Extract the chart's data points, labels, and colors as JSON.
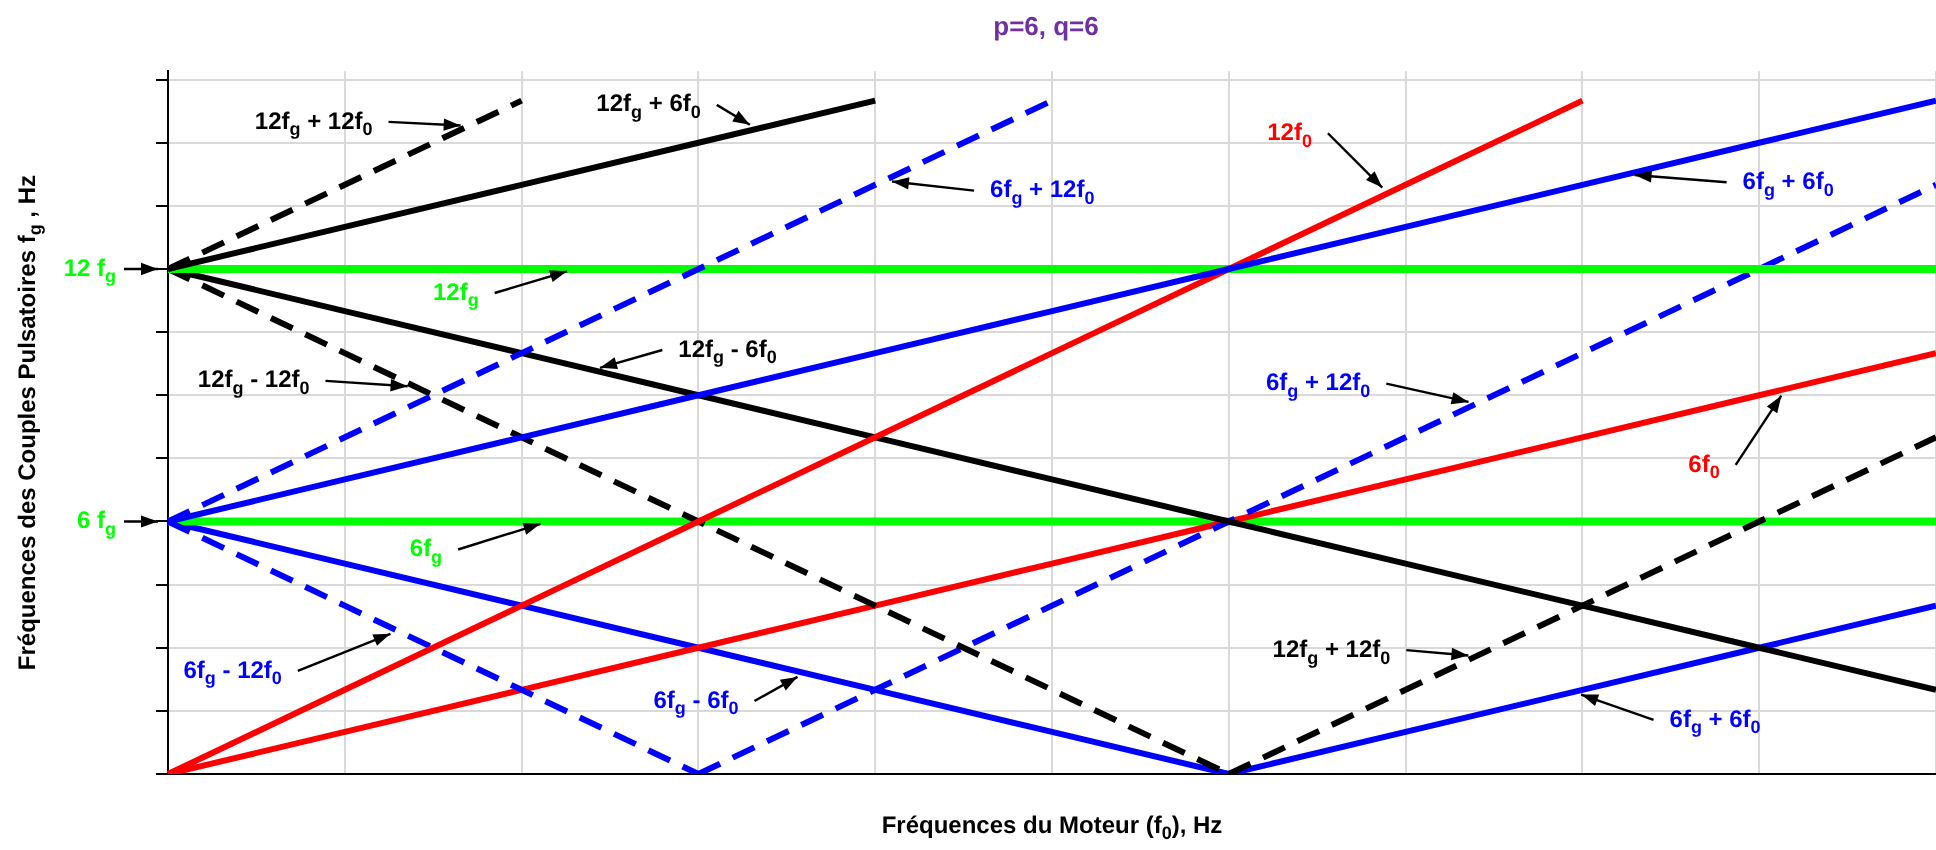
{
  "chart_data": {
    "type": "line",
    "title": "p=6, q=6",
    "xlabel": "Fréquences du Moteur (f$_{0}$), Hz",
    "ylabel": "Fréquences des Couples Pulsatoires f$_{g}$ , Hz",
    "categories": [
      null,
      null,
      null,
      null,
      null,
      null,
      null,
      null,
      null,
      null,
      null
    ],
    "ylim": [
      0,
      16.7
    ],
    "yticks": [
      {
        "value": 0,
        "label": null
      },
      {
        "value": 1.5,
        "label": null
      },
      {
        "value": 3,
        "label": null
      },
      {
        "value": 4.5,
        "label": null
      },
      {
        "value": 6,
        "label": "6 f$_{g}$"
      },
      {
        "value": 7.5,
        "label": null
      },
      {
        "value": 9,
        "label": null
      },
      {
        "value": 10.5,
        "label": null
      },
      {
        "value": 12,
        "label": "12 f$_{g}$"
      },
      {
        "value": 13.5,
        "label": null
      },
      {
        "value": 15,
        "label": null
      },
      {
        "value": 16.5,
        "label": null
      }
    ],
    "tick_labels": "y",
    "grid": true,
    "legend": false,
    "marker": "none",
    "annotations": [
      "12f$_{g}$ + 12f$_{0}$",
      "12f$_{g}$ + 6f$_{0}$",
      "6f$_{g}$ + 12f$_{0}$",
      "6f$_{g}$ + 6f$_{0}$",
      "12f$_{0}$",
      "12f$_{g}$",
      "12f$_{g}$ - 6f$_{0}$",
      "12f$_{g}$ - 12f$_{0}$",
      "12f$_{g}$ + 12f$_{0}$",
      "6f$_{g}$ - 12f$_{0}$",
      "6f$_{g}$ + 12f$_{0}$",
      "6f$_{0}$",
      "6f$_{g}$",
      "6f$_{g}$ - 6f$_{0}$",
      "6f$_{g}$ + 6f$_{0}$"
    ],
    "series": [
      {
        "color": "#000000",
        "line_style": "dashed",
        "values": [
          12,
          14,
          16,
          null,
          null,
          null,
          null,
          null,
          null,
          null,
          null
        ]
      },
      {
        "color": "#000000",
        "line_style": "solid",
        "values": [
          12,
          13,
          14,
          15,
          16,
          null,
          null,
          null,
          null,
          null,
          null
        ]
      },
      {
        "color": "#0000ff",
        "line_style": "dashed",
        "values": [
          6,
          8,
          10,
          12,
          14,
          16,
          null,
          null,
          null,
          null,
          null
        ]
      },
      {
        "color": "#0000ff",
        "line_style": "solid",
        "values": [
          6,
          7,
          8,
          9,
          10,
          11,
          12,
          13,
          14,
          15,
          16
        ]
      },
      {
        "color": "#ff0000",
        "line_style": "solid",
        "values": [
          0,
          2,
          4,
          6,
          8,
          10,
          12,
          14,
          16,
          null,
          null
        ]
      },
      {
        "color": "#00ff00",
        "line_style": "solid",
        "values": [
          12,
          12,
          12,
          12,
          12,
          12,
          12,
          12,
          12,
          12,
          12
        ]
      },
      {
        "color": "#000000",
        "line_style": "solid",
        "values": [
          12,
          11,
          10,
          9,
          8,
          7,
          6,
          5,
          4,
          3,
          2
        ]
      },
      {
        "color": "#000000",
        "line_style": "dashed",
        "values": [
          12,
          10,
          8,
          6,
          4,
          2,
          0,
          null,
          null,
          null,
          null
        ]
      },
      {
        "color": "#000000",
        "line_style": "dashed",
        "values": [
          null,
          null,
          null,
          null,
          null,
          null,
          0,
          2,
          4,
          6,
          8
        ]
      },
      {
        "color": "#0000ff",
        "line_style": "dashed",
        "values": [
          6,
          4,
          2,
          0,
          null,
          null,
          null,
          null,
          null,
          null,
          null
        ]
      },
      {
        "color": "#0000ff",
        "line_style": "dashed",
        "values": [
          null,
          null,
          null,
          0,
          2,
          4,
          6,
          8,
          10,
          12,
          14
        ]
      },
      {
        "color": "#ff0000",
        "line_style": "solid",
        "values": [
          0,
          1,
          2,
          3,
          4,
          5,
          6,
          7,
          8,
          9,
          10
        ]
      },
      {
        "color": "#00ff00",
        "line_style": "solid",
        "values": [
          6,
          6,
          6,
          6,
          6,
          6,
          6,
          6,
          6,
          6,
          6
        ]
      },
      {
        "color": "#0000ff",
        "line_style": "solid",
        "values": [
          6,
          5,
          4,
          3,
          2,
          1,
          0,
          null,
          null,
          null,
          null
        ]
      },
      {
        "color": "#0000ff",
        "line_style": "solid",
        "values": [
          null,
          null,
          null,
          null,
          null,
          null,
          0,
          1,
          2,
          3,
          4
        ]
      }
    ]
  }
}
